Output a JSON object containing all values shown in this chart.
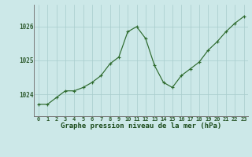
{
  "x": [
    0,
    1,
    2,
    3,
    4,
    5,
    6,
    7,
    8,
    9,
    10,
    11,
    12,
    13,
    14,
    15,
    16,
    17,
    18,
    19,
    20,
    21,
    22,
    23
  ],
  "y": [
    1023.7,
    1023.7,
    1023.9,
    1024.1,
    1024.1,
    1024.2,
    1024.35,
    1024.55,
    1024.9,
    1025.1,
    1025.85,
    1026.0,
    1025.65,
    1024.85,
    1024.35,
    1024.2,
    1024.55,
    1024.75,
    1024.95,
    1025.3,
    1025.55,
    1025.85,
    1026.1,
    1026.3
  ],
  "line_color": "#2d6a2d",
  "marker_color": "#2d6a2d",
  "bg_color": "#cce8e8",
  "grid_color": "#a8cccc",
  "title": "Graphe pression niveau de la mer (hPa)",
  "xlabel_ticks": [
    "0",
    "1",
    "2",
    "3",
    "4",
    "5",
    "6",
    "7",
    "8",
    "9",
    "10",
    "11",
    "12",
    "13",
    "14",
    "15",
    "16",
    "17",
    "18",
    "19",
    "20",
    "21",
    "22",
    "23"
  ],
  "yticks": [
    1024,
    1025,
    1026
  ],
  "ylim": [
    1023.35,
    1026.65
  ],
  "xlim": [
    -0.5,
    23.5
  ],
  "tick_color": "#2d5a2d",
  "spine_color": "#777777",
  "title_color": "#1a4a1a",
  "title_fontsize": 6.5,
  "tick_fontsize": 5.0,
  "ytick_fontsize": 5.5
}
